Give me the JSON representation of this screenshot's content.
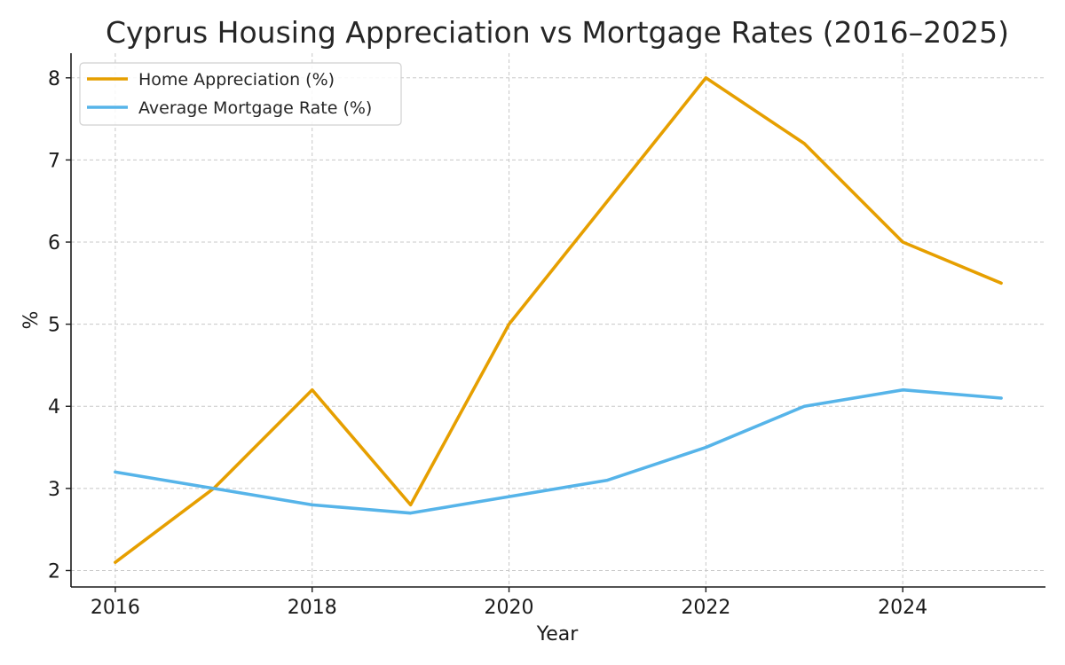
{
  "chart_data": {
    "type": "line",
    "title": "Cyprus Housing Appreciation vs Mortgage Rates (2016–2025)",
    "xlabel": "Year",
    "ylabel": "%",
    "x": [
      2016,
      2017,
      2018,
      2019,
      2020,
      2021,
      2022,
      2023,
      2024,
      2025
    ],
    "xticks": [
      "2016",
      "2018",
      "2020",
      "2022",
      "2024"
    ],
    "yticks": [
      "2",
      "3",
      "4",
      "5",
      "6",
      "7",
      "8"
    ],
    "xlim": [
      2015.55,
      2025.45
    ],
    "ylim": [
      1.8,
      8.3
    ],
    "grid": true,
    "legend_position": "top-left",
    "series": [
      {
        "name": "Home Appreciation (%)",
        "color": "#E69F00",
        "values": [
          2.1,
          3.0,
          4.2,
          2.8,
          5.0,
          6.5,
          8.0,
          7.2,
          6.0,
          5.5
        ]
      },
      {
        "name": "Average Mortgage Rate (%)",
        "color": "#56B4E9",
        "values": [
          3.2,
          3.0,
          2.8,
          2.7,
          2.9,
          3.1,
          3.5,
          4.0,
          4.2,
          4.1
        ]
      }
    ]
  }
}
